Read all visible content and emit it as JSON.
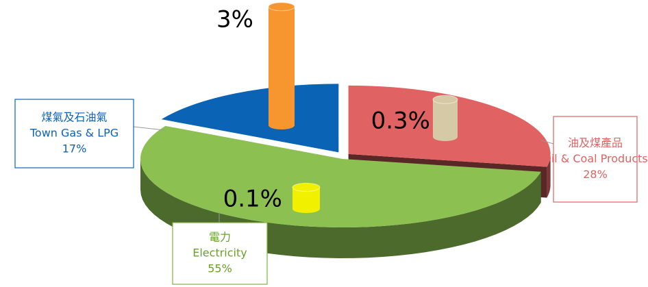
{
  "chart_data": {
    "type": "pie3d",
    "categories": [
      "Town Gas & LPG",
      "Oil & Coal Products",
      "Electricity"
    ],
    "categories_zh": [
      "煤氣及石油氣",
      "油及煤產品",
      "電力"
    ],
    "values": [
      17,
      28,
      55
    ],
    "value_labels": [
      "17%",
      "28%",
      "55%"
    ],
    "colors": [
      "#0b63b5",
      "#e06262",
      "#8cc152"
    ],
    "cylinders": {
      "values": [
        3,
        0.3,
        0.1
      ],
      "value_labels": [
        "3%",
        "0.3%",
        "0.1%"
      ],
      "colors": [
        "#f7962f",
        "#d6caa6",
        "#f0f000"
      ]
    }
  }
}
